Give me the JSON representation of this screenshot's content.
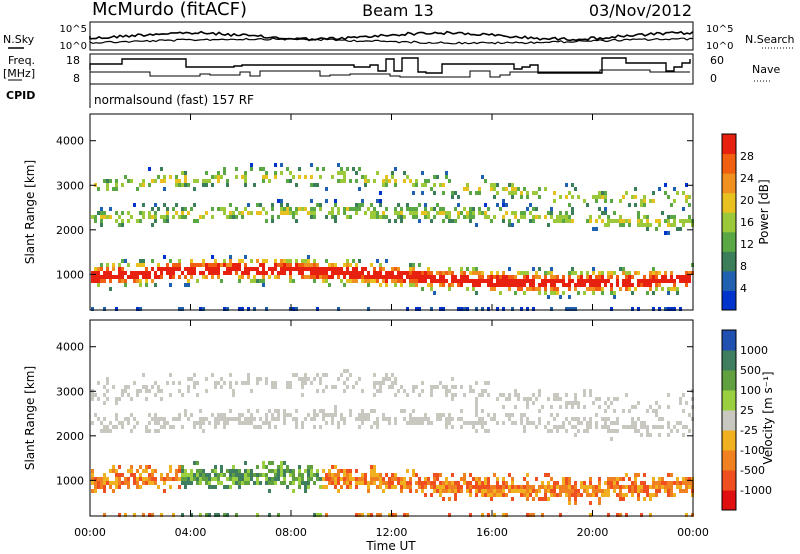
{
  "header": {
    "station": "McMurdo (fitACF)",
    "beam": "Beam 13",
    "date": "03/Nov/2012"
  },
  "aux_panel": {
    "nsky_label": "N.Sky",
    "nsky_ticks": [
      "10^5",
      "10^0"
    ],
    "nsearch_label": "N.Search",
    "nsearch_ticks": [
      "10^5",
      "10^0"
    ],
    "freq_label_1": "Freq.",
    "freq_label_2": "[MHz]",
    "freq_ticks": [
      "18",
      "8"
    ],
    "nave_label": "Nave",
    "nave_ticks": [
      "60",
      "0"
    ],
    "cpid_label": "CPID",
    "cpid_text": "normalsound (fast) 157 RF"
  },
  "colors": {
    "power_scale": [
      "#0033cc",
      "#2060b0",
      "#3a7f5a",
      "#5aa845",
      "#9cc93a",
      "#e8c020",
      "#f09020",
      "#f06010",
      "#e82010"
    ],
    "velocity_scale": [
      "#2050b0",
      "#3f7f5f",
      "#60a040",
      "#9ad040",
      "#c8c8c0",
      "#f0b020",
      "#f08020",
      "#f05020",
      "#e01010"
    ]
  },
  "chart_data": [
    {
      "type": "heatmap",
      "name": "power",
      "ylabel": "Slant Range [km]",
      "y_ticks": [
        1000,
        2000,
        3000,
        4000
      ],
      "ylim": [
        200,
        4600
      ],
      "colorbar_label": "Power [dB]",
      "colorbar_ticks": [
        4,
        8,
        12,
        16,
        20,
        24,
        28
      ],
      "colorbar_range": [
        0,
        32
      ]
    },
    {
      "type": "heatmap",
      "name": "velocity",
      "ylabel": "Slant Range [km]",
      "y_ticks": [
        1000,
        2000,
        3000,
        4000
      ],
      "ylim": [
        200,
        4600
      ],
      "colorbar_label": "Velocity [m s⁻¹]",
      "colorbar_ticks": [
        "1000",
        "500",
        "100",
        "25",
        "-25",
        "-100",
        "-500",
        "-1000"
      ]
    }
  ],
  "x_axis": {
    "xlabel": "Time UT",
    "tick_labels": [
      "00:00",
      "04:00",
      "08:00",
      "12:00",
      "16:00",
      "20:00",
      "00:00"
    ]
  }
}
